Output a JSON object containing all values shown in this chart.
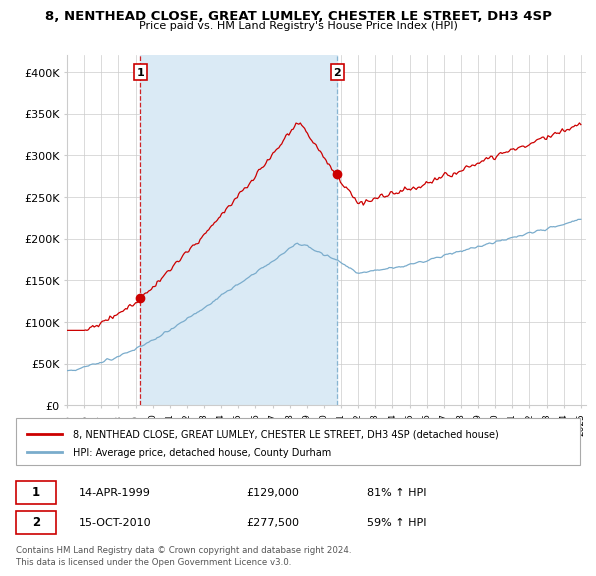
{
  "title1": "8, NENTHEAD CLOSE, GREAT LUMLEY, CHESTER LE STREET, DH3 4SP",
  "title2": "Price paid vs. HM Land Registry's House Price Index (HPI)",
  "ylim": [
    0,
    420000
  ],
  "yticks": [
    0,
    50000,
    100000,
    150000,
    200000,
    250000,
    300000,
    350000,
    400000
  ],
  "ytick_labels": [
    "£0",
    "£50K",
    "£100K",
    "£150K",
    "£200K",
    "£250K",
    "£300K",
    "£350K",
    "£400K"
  ],
  "sale1_date": "14-APR-1999",
  "sale1_price": 129000,
  "sale1_pricefmt": "£129,000",
  "sale1_label": "81% ↑ HPI",
  "sale2_date": "15-OCT-2010",
  "sale2_price": 277500,
  "sale2_pricefmt": "£277,500",
  "sale2_label": "59% ↑ HPI",
  "legend1": "8, NENTHEAD CLOSE, GREAT LUMLEY, CHESTER LE STREET, DH3 4SP (detached house)",
  "legend2": "HPI: Average price, detached house, County Durham",
  "footer": "Contains HM Land Registry data © Crown copyright and database right 2024.\nThis data is licensed under the Open Government Licence v3.0.",
  "line1_color": "#cc0000",
  "line2_color": "#7aaccc",
  "shade_color": "#daeaf5",
  "grid_color": "#cccccc",
  "bg_color": "#ffffff",
  "sale1_x": 1999.29,
  "sale2_x": 2010.79,
  "annot_color": "#cc0000",
  "dash1_color": "#cc0000",
  "dash2_color": "#7aaccc"
}
